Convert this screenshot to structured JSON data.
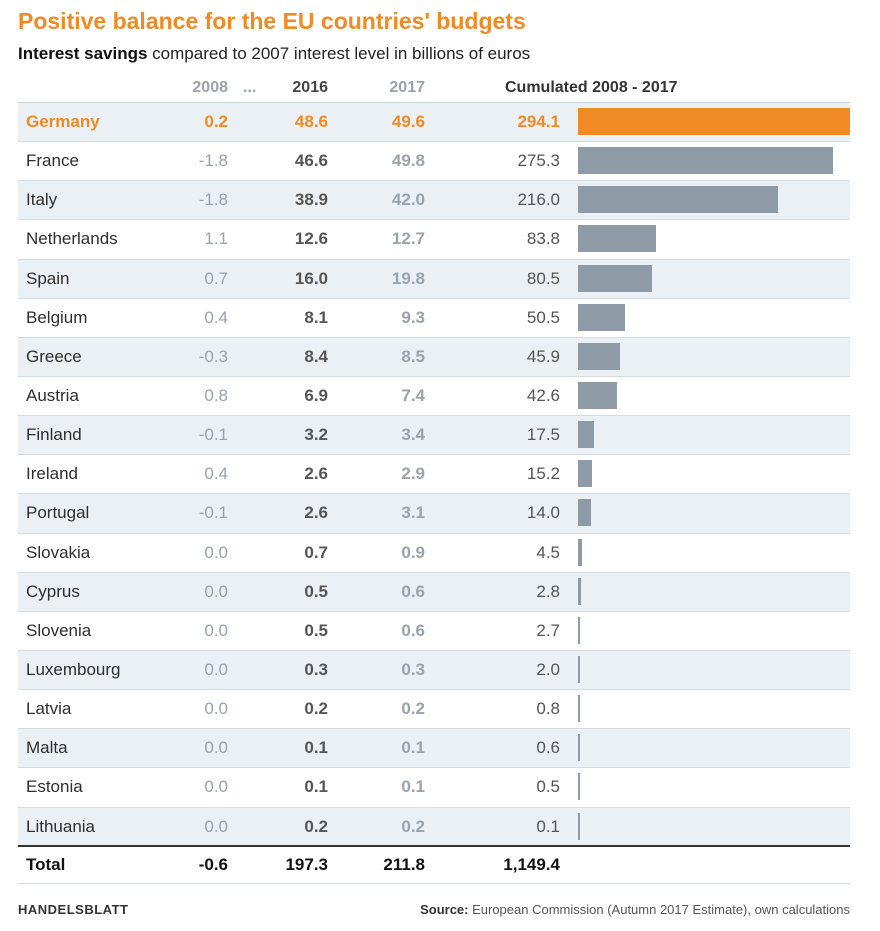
{
  "title": "Positive balance for the EU countries' budgets",
  "subtitle_bold": "Interest savings",
  "subtitle_rest": " compared to 2007 interest level in billions of euros",
  "headers": {
    "y2008": "2008",
    "dots": "...",
    "y2016": "2016",
    "y2017": "2017",
    "cumulated": "Cumulated 2008 - 2017"
  },
  "colors": {
    "accent": "#f08a24",
    "bar": "#8e9aa5"
  },
  "chart_data": {
    "type": "bar",
    "title": "Positive balance for the EU countries' budgets",
    "ylabel": "Cumulated 2008 - 2017",
    "xlim": [
      0,
      294.1
    ],
    "rows": [
      {
        "country": "Germany",
        "y2008": "0.2",
        "y2016": "48.6",
        "y2017": "49.6",
        "cumulated": "294.1",
        "value": 294.1,
        "highlight": true
      },
      {
        "country": "France",
        "y2008": "-1.8",
        "y2016": "46.6",
        "y2017": "49.8",
        "cumulated": "275.3",
        "value": 275.3
      },
      {
        "country": "Italy",
        "y2008": "-1.8",
        "y2016": "38.9",
        "y2017": "42.0",
        "cumulated": "216.0",
        "value": 216.0
      },
      {
        "country": "Netherlands",
        "y2008": "1.1",
        "y2016": "12.6",
        "y2017": "12.7",
        "cumulated": "83.8",
        "value": 83.8
      },
      {
        "country": "Spain",
        "y2008": "0.7",
        "y2016": "16.0",
        "y2017": "19.8",
        "cumulated": "80.5",
        "value": 80.5
      },
      {
        "country": "Belgium",
        "y2008": "0.4",
        "y2016": "8.1",
        "y2017": "9.3",
        "cumulated": "50.5",
        "value": 50.5
      },
      {
        "country": "Greece",
        "y2008": "-0.3",
        "y2016": "8.4",
        "y2017": "8.5",
        "cumulated": "45.9",
        "value": 45.9
      },
      {
        "country": "Austria",
        "y2008": "0.8",
        "y2016": "6.9",
        "y2017": "7.4",
        "cumulated": "42.6",
        "value": 42.6
      },
      {
        "country": "Finland",
        "y2008": "-0.1",
        "y2016": "3.2",
        "y2017": "3.4",
        "cumulated": "17.5",
        "value": 17.5
      },
      {
        "country": "Ireland",
        "y2008": "0.4",
        "y2016": "2.6",
        "y2017": "2.9",
        "cumulated": "15.2",
        "value": 15.2
      },
      {
        "country": "Portugal",
        "y2008": "-0.1",
        "y2016": "2.6",
        "y2017": "3.1",
        "cumulated": "14.0",
        "value": 14.0
      },
      {
        "country": "Slovakia",
        "y2008": "0.0",
        "y2016": "0.7",
        "y2017": "0.9",
        "cumulated": "4.5",
        "value": 4.5
      },
      {
        "country": "Cyprus",
        "y2008": "0.0",
        "y2016": "0.5",
        "y2017": "0.6",
        "cumulated": "2.8",
        "value": 2.8
      },
      {
        "country": "Slovenia",
        "y2008": "0.0",
        "y2016": "0.5",
        "y2017": "0.6",
        "cumulated": "2.7",
        "value": 2.7
      },
      {
        "country": "Luxembourg",
        "y2008": "0.0",
        "y2016": "0.3",
        "y2017": "0.3",
        "cumulated": "2.0",
        "value": 2.0
      },
      {
        "country": "Latvia",
        "y2008": "0.0",
        "y2016": "0.2",
        "y2017": "0.2",
        "cumulated": "0.8",
        "value": 0.8
      },
      {
        "country": "Malta",
        "y2008": "0.0",
        "y2016": "0.1",
        "y2017": "0.1",
        "cumulated": "0.6",
        "value": 0.6
      },
      {
        "country": "Estonia",
        "y2008": "0.0",
        "y2016": "0.1",
        "y2017": "0.1",
        "cumulated": "0.5",
        "value": 0.5
      },
      {
        "country": "Lithuania",
        "y2008": "0.0",
        "y2016": "0.2",
        "y2017": "0.2",
        "cumulated": "0.1",
        "value": 0.1
      }
    ],
    "total": {
      "label": "Total",
      "y2008": "-0.6",
      "y2016": "197.3",
      "y2017": "211.8",
      "cumulated": "1,149.4"
    }
  },
  "footer": {
    "brand": "HANDELSBLATT",
    "source_label": "Source:",
    "source_text": " European Commission (Autumn 2017 Estimate), own calculations"
  }
}
